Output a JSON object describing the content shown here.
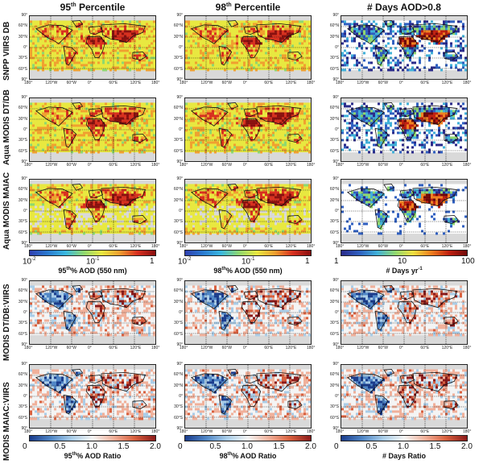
{
  "columns": [
    {
      "title_base": "95",
      "title_sup": "th",
      "title_rest": " Percentile"
    },
    {
      "title_base": "98",
      "title_sup": "th",
      "title_rest": " Percentile"
    },
    {
      "title_base": "# Days AOD>0.8",
      "title_sup": "",
      "title_rest": ""
    }
  ],
  "rows": [
    {
      "label": "SNPP VIIRS DB"
    },
    {
      "label": "Aqua MODIS DT/DB"
    },
    {
      "label": "Aqua MODIS MAIAC"
    },
    {
      "label": "MODIS DT/DB:VIIRS"
    },
    {
      "label": "MODIS MAIAC:VIIRS"
    }
  ],
  "lat_labels": [
    "90°",
    "60°N",
    "30°N",
    "0°",
    "30°S",
    "60°S",
    "90°"
  ],
  "lon_labels": [
    "180°",
    "120°W",
    "60°W",
    "0°",
    "60°E",
    "120°E",
    "180°"
  ],
  "colorbars_aod": [
    {
      "ticks": [
        {
          "base": "10",
          "sup": "-2"
        },
        {
          "base": "10",
          "sup": "-1"
        },
        {
          "base": "1",
          "sup": ""
        }
      ],
      "label_pre": "95",
      "label_sup": "th",
      "label_post": "% AOD (550 nm)"
    },
    {
      "ticks": [
        {
          "base": "10",
          "sup": "-2"
        },
        {
          "base": "10",
          "sup": "-1"
        },
        {
          "base": "1",
          "sup": ""
        }
      ],
      "label_pre": "98",
      "label_sup": "th",
      "label_post": "% AOD (550 nm)"
    },
    {
      "ticks": [
        {
          "base": "1",
          "sup": ""
        },
        {
          "base": "10",
          "sup": ""
        },
        {
          "base": "100",
          "sup": ""
        }
      ],
      "label_pre": "# Days yr",
      "label_sup": "-1",
      "label_post": ""
    }
  ],
  "colorbars_ratio": [
    {
      "ticks": [
        "0",
        "0.5",
        "1.0",
        "1.5",
        "2.0"
      ],
      "label_pre": "95",
      "label_sup": "th",
      "label_post": "% AOD Ratio"
    },
    {
      "ticks": [
        "0",
        "0.5",
        "1.0",
        "1.5",
        "2.0"
      ],
      "label_pre": "98",
      "label_sup": "th",
      "label_post": "% AOD Ratio"
    },
    {
      "ticks": [
        "0",
        "0.5",
        "1.0",
        "1.5",
        "2.0"
      ],
      "label_pre": "# Days Ratio",
      "label_sup": "",
      "label_post": ""
    }
  ],
  "colors": {
    "aod_scale": [
      "#3040b0",
      "#2a7ad0",
      "#3ab8e0",
      "#8ed870",
      "#e8e840",
      "#f0a030",
      "#d83020",
      "#8a1010"
    ],
    "ratio_scale": [
      "#1a3c8c",
      "#4f86c6",
      "#a9cde8",
      "#f4f4f4",
      "#f0b09a",
      "#d8603e",
      "#8c1a1a"
    ],
    "days_scale": [
      "#2a2a8a",
      "#2f5fc0",
      "#40b0d8",
      "#90d870",
      "#f0e040",
      "#f08020",
      "#c02010",
      "#700808"
    ],
    "land": "#d9d9d9"
  }
}
